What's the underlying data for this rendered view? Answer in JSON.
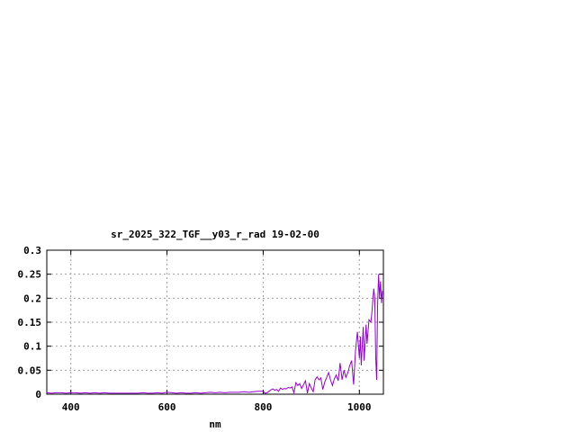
{
  "chart_data": {
    "type": "line",
    "title": "sr_2025_322_TGF__y03_r_rad 19-02-00",
    "xlabel": "nm",
    "ylabel": "",
    "xlim": [
      350,
      1050
    ],
    "ylim": [
      0,
      0.3
    ],
    "grid": true,
    "x_ticks": [
      400,
      600,
      800,
      1000
    ],
    "x_tick_labels": [
      "400",
      "600",
      "800",
      "1000"
    ],
    "y_ticks": [
      0,
      0.05,
      0.1,
      0.15,
      0.2,
      0.25,
      0.3
    ],
    "y_tick_labels": [
      "0",
      "0.05",
      "0.1",
      "0.15",
      "0.2",
      "0.25",
      "0.3"
    ],
    "series": [
      {
        "color": "#9400d3",
        "x": [
          350,
          360,
          370,
          380,
          390,
          400,
          410,
          420,
          430,
          440,
          450,
          460,
          470,
          480,
          490,
          500,
          510,
          520,
          530,
          540,
          550,
          560,
          570,
          580,
          590,
          600,
          610,
          620,
          630,
          640,
          650,
          660,
          670,
          680,
          690,
          700,
          710,
          720,
          730,
          740,
          750,
          760,
          770,
          780,
          790,
          800,
          804,
          808,
          812,
          816,
          820,
          824,
          828,
          832,
          836,
          840,
          844,
          848,
          852,
          856,
          860,
          864,
          868,
          872,
          876,
          880,
          884,
          888,
          892,
          896,
          900,
          904,
          908,
          912,
          916,
          920,
          924,
          928,
          932,
          936,
          940,
          944,
          948,
          952,
          956,
          960,
          964,
          968,
          972,
          976,
          980,
          984,
          988,
          992,
          996,
          1000,
          1002,
          1004,
          1008,
          1010,
          1014,
          1016,
          1020,
          1024,
          1026,
          1030,
          1032,
          1034,
          1036,
          1038,
          1040,
          1042,
          1044,
          1046,
          1048
        ],
        "y": [
          0.003,
          0.002,
          0.003,
          0.003,
          0.002,
          0.003,
          0.003,
          0.002,
          0.003,
          0.002,
          0.003,
          0.002,
          0.003,
          0.002,
          0.002,
          0.002,
          0.002,
          0.002,
          0.002,
          0.002,
          0.003,
          0.002,
          0.002,
          0.003,
          0.002,
          0.004,
          0.003,
          0.002,
          0.003,
          0.002,
          0.002,
          0.003,
          0.002,
          0.003,
          0.004,
          0.003,
          0.004,
          0.003,
          0.004,
          0.004,
          0.004,
          0.005,
          0.004,
          0.005,
          0.006,
          0.006,
          0.002,
          0.003,
          0.006,
          0.009,
          0.011,
          0.008,
          0.01,
          0.006,
          0.013,
          0.01,
          0.012,
          0.011,
          0.014,
          0.013,
          0.015,
          0.003,
          0.024,
          0.018,
          0.022,
          0.012,
          0.02,
          0.028,
          0.002,
          0.022,
          0.013,
          0.005,
          0.03,
          0.036,
          0.03,
          0.034,
          0.01,
          0.025,
          0.035,
          0.045,
          0.03,
          0.018,
          0.032,
          0.04,
          0.028,
          0.065,
          0.03,
          0.05,
          0.035,
          0.045,
          0.06,
          0.07,
          0.02,
          0.09,
          0.13,
          0.075,
          0.12,
          0.06,
          0.14,
          0.07,
          0.145,
          0.105,
          0.155,
          0.15,
          0.17,
          0.22,
          0.2,
          0.075,
          0.03,
          0.19,
          0.25,
          0.2,
          0.235,
          0.19,
          0.215
        ]
      }
    ]
  }
}
